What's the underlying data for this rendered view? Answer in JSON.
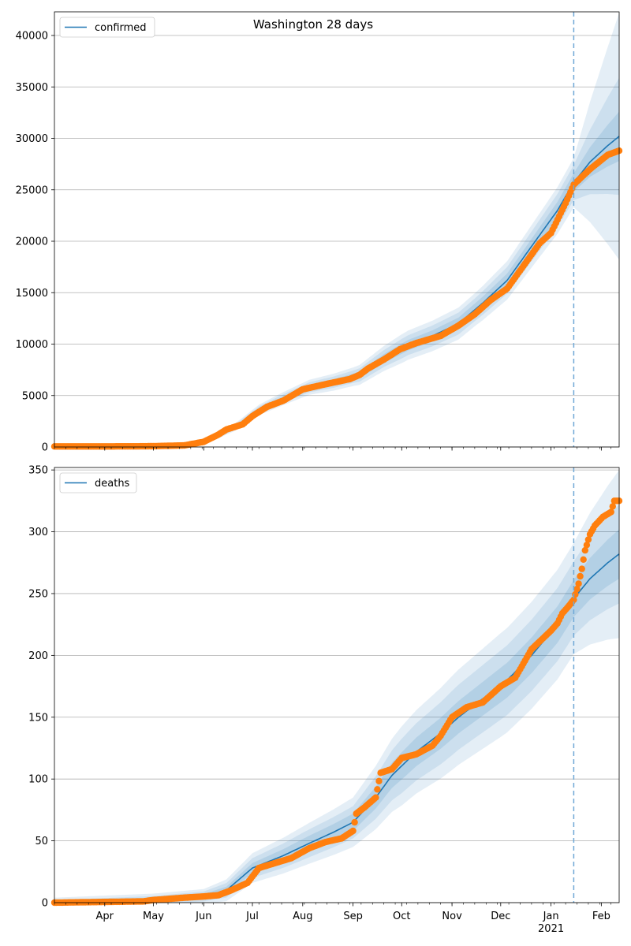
{
  "chart_data": [
    {
      "type": "line",
      "title": "Washington 28 days",
      "ylim": [
        0,
        42300
      ],
      "yticks": [
        0,
        5000,
        10000,
        15000,
        20000,
        25000,
        30000,
        35000,
        40000
      ],
      "grid": "y",
      "legend": "top-left",
      "forecast_start": "2021-01-15",
      "series": [
        {
          "name": "confirmed",
          "color": "#1f77b4",
          "model_points": [
            [
              "2020-03-01",
              0
            ],
            [
              "2020-05-01",
              50
            ],
            [
              "2020-05-25",
              200
            ],
            [
              "2020-06-05",
              700
            ],
            [
              "2020-06-20",
              1900
            ],
            [
              "2020-07-05",
              3600
            ],
            [
              "2020-07-20",
              4700
            ],
            [
              "2020-08-05",
              5800
            ],
            [
              "2020-08-20",
              6300
            ],
            [
              "2020-09-05",
              7000
            ],
            [
              "2020-09-20",
              8600
            ],
            [
              "2020-10-05",
              9900
            ],
            [
              "2020-10-20",
              10800
            ],
            [
              "2020-11-05",
              12000
            ],
            [
              "2020-11-20",
              14000
            ],
            [
              "2020-12-05",
              16200
            ],
            [
              "2020-12-20",
              19500
            ],
            [
              "2021-01-05",
              23000
            ],
            [
              "2021-01-15",
              25700
            ],
            [
              "2021-01-25",
              27700
            ],
            [
              "2021-02-05",
              29300
            ],
            [
              "2021-02-12",
              30200
            ]
          ],
          "band_widths": [
            [
              [
                "2020-03-01",
                0
              ],
              [
                "2020-05-15",
                60
              ],
              [
                "2020-06-15",
                300
              ],
              [
                "2020-07-15",
                600
              ],
              [
                "2020-09-01",
                900
              ],
              [
                "2020-10-01",
                1400
              ],
              [
                "2020-11-15",
                1600
              ],
              [
                "2020-12-15",
                2000
              ],
              [
                "2021-01-15",
                2400
              ],
              [
                "2021-02-12",
                12000
              ]
            ],
            [
              [
                "2020-03-01",
                0
              ],
              [
                "2020-05-15",
                40
              ],
              [
                "2020-06-15",
                200
              ],
              [
                "2020-07-15",
                400
              ],
              [
                "2020-09-01",
                600
              ],
              [
                "2020-10-01",
                950
              ],
              [
                "2020-11-15",
                1100
              ],
              [
                "2020-12-15",
                1400
              ],
              [
                "2021-01-15",
                1700
              ],
              [
                "2021-02-12",
                5700
              ]
            ],
            [
              [
                "2020-03-01",
                0
              ],
              [
                "2020-05-15",
                20
              ],
              [
                "2020-06-15",
                100
              ],
              [
                "2020-07-15",
                200
              ],
              [
                "2020-09-01",
                300
              ],
              [
                "2020-10-01",
                500
              ],
              [
                "2020-11-15",
                600
              ],
              [
                "2020-12-15",
                700
              ],
              [
                "2021-01-15",
                900
              ],
              [
                "2021-02-12",
                2400
              ]
            ]
          ],
          "observed_points": [
            [
              "2020-03-01",
              50
            ],
            [
              "2020-04-20",
              60
            ],
            [
              "2020-05-01",
              80
            ],
            [
              "2020-05-20",
              150
            ],
            [
              "2020-06-01",
              500
            ],
            [
              "2020-06-10",
              1200
            ],
            [
              "2020-06-15",
              1700
            ],
            [
              "2020-06-25",
              2200
            ],
            [
              "2020-07-01",
              3000
            ],
            [
              "2020-07-10",
              3900
            ],
            [
              "2020-07-20",
              4500
            ],
            [
              "2020-08-01",
              5600
            ],
            [
              "2020-08-15",
              6100
            ],
            [
              "2020-08-30",
              6600
            ],
            [
              "2020-09-05",
              7000
            ],
            [
              "2020-09-10",
              7600
            ],
            [
              "2020-09-20",
              8500
            ],
            [
              "2020-09-30",
              9500
            ],
            [
              "2020-10-10",
              10100
            ],
            [
              "2020-10-25",
              10800
            ],
            [
              "2020-11-05",
              11800
            ],
            [
              "2020-11-15",
              12900
            ],
            [
              "2020-11-25",
              14300
            ],
            [
              "2020-12-05",
              15400
            ],
            [
              "2020-12-15",
              17600
            ],
            [
              "2020-12-25",
              19800
            ],
            [
              "2021-01-01",
              20800
            ],
            [
              "2021-01-10",
              23700
            ],
            [
              "2021-01-15",
              25500
            ],
            [
              "2021-01-25",
              27000
            ],
            [
              "2021-02-05",
              28400
            ],
            [
              "2021-02-12",
              28800
            ]
          ]
        }
      ]
    },
    {
      "type": "line",
      "ylim": [
        0,
        352
      ],
      "yticks": [
        0,
        50,
        100,
        150,
        200,
        250,
        300,
        350
      ],
      "grid": "y",
      "legend": "top-left",
      "forecast_start": "2021-01-15",
      "xlim": [
        "2020-03-01",
        "2021-02-12"
      ],
      "xtick_labels": [
        {
          "date": "2020-04-01",
          "label": "Apr"
        },
        {
          "date": "2020-05-01",
          "label": "May"
        },
        {
          "date": "2020-06-01",
          "label": "Jun"
        },
        {
          "date": "2020-07-01",
          "label": "Jul"
        },
        {
          "date": "2020-08-01",
          "label": "Aug"
        },
        {
          "date": "2020-09-01",
          "label": "Sep"
        },
        {
          "date": "2020-10-01",
          "label": "Oct"
        },
        {
          "date": "2020-11-01",
          "label": "Nov"
        },
        {
          "date": "2020-12-01",
          "label": "Dec"
        },
        {
          "date": "2021-01-01",
          "label": "Jan\n2021"
        },
        {
          "date": "2021-02-01",
          "label": "Feb"
        }
      ],
      "series": [
        {
          "name": "deaths",
          "color": "#1f77b4",
          "model_points": [
            [
              "2020-03-01",
              0
            ],
            [
              "2020-05-01",
              2
            ],
            [
              "2020-06-01",
              5
            ],
            [
              "2020-06-15",
              10
            ],
            [
              "2020-07-01",
              28
            ],
            [
              "2020-07-20",
              38
            ],
            [
              "2020-08-05",
              48
            ],
            [
              "2020-08-20",
              57
            ],
            [
              "2020-09-01",
              65
            ],
            [
              "2020-09-15",
              85
            ],
            [
              "2020-09-25",
              103
            ],
            [
              "2020-10-10",
              122
            ],
            [
              "2020-10-25",
              137
            ],
            [
              "2020-11-05",
              150
            ],
            [
              "2020-11-20",
              165
            ],
            [
              "2020-12-05",
              180
            ],
            [
              "2020-12-20",
              200
            ],
            [
              "2021-01-05",
              225
            ],
            [
              "2021-01-15",
              246
            ],
            [
              "2021-01-25",
              262
            ],
            [
              "2021-02-05",
              275
            ],
            [
              "2021-02-12",
              282
            ]
          ],
          "band_widths": [
            [
              [
                "2020-03-01",
                4
              ],
              [
                "2020-06-01",
                6
              ],
              [
                "2020-07-01",
                12
              ],
              [
                "2020-08-01",
                16
              ],
              [
                "2020-09-01",
                20
              ],
              [
                "2020-10-01",
                32
              ],
              [
                "2020-11-01",
                38
              ],
              [
                "2020-12-01",
                42
              ],
              [
                "2021-01-15",
                45
              ],
              [
                "2021-02-12",
                68
              ]
            ],
            [
              [
                "2020-03-01",
                2
              ],
              [
                "2020-06-01",
                4
              ],
              [
                "2020-07-01",
                8
              ],
              [
                "2020-08-01",
                11
              ],
              [
                "2020-09-01",
                13
              ],
              [
                "2020-10-01",
                22
              ],
              [
                "2020-11-01",
                26
              ],
              [
                "2020-12-01",
                28
              ],
              [
                "2021-01-15",
                30
              ],
              [
                "2021-02-12",
                40
              ]
            ],
            [
              [
                "2020-03-01",
                1
              ],
              [
                "2020-06-01",
                2
              ],
              [
                "2020-07-01",
                4
              ],
              [
                "2020-08-01",
                6
              ],
              [
                "2020-09-01",
                7
              ],
              [
                "2020-10-01",
                11
              ],
              [
                "2020-11-01",
                13
              ],
              [
                "2020-12-01",
                14
              ],
              [
                "2021-01-15",
                15
              ],
              [
                "2021-02-12",
                20
              ]
            ]
          ],
          "observed_points": [
            [
              "2020-03-01",
              0
            ],
            [
              "2020-04-25",
              1
            ],
            [
              "2020-04-30",
              2
            ],
            [
              "2020-05-20",
              4
            ],
            [
              "2020-06-01",
              5
            ],
            [
              "2020-06-10",
              6
            ],
            [
              "2020-06-18",
              10
            ],
            [
              "2020-06-28",
              16
            ],
            [
              "2020-07-05",
              28
            ],
            [
              "2020-07-15",
              32
            ],
            [
              "2020-07-25",
              36
            ],
            [
              "2020-08-05",
              44
            ],
            [
              "2020-08-15",
              49
            ],
            [
              "2020-08-25",
              52
            ],
            [
              "2020-09-01",
              58
            ],
            [
              "2020-09-03",
              72
            ],
            [
              "2020-09-08",
              77
            ],
            [
              "2020-09-15",
              85
            ],
            [
              "2020-09-18",
              105
            ],
            [
              "2020-09-25",
              108
            ],
            [
              "2020-10-01",
              117
            ],
            [
              "2020-10-10",
              120
            ],
            [
              "2020-10-20",
              127
            ],
            [
              "2020-10-25",
              135
            ],
            [
              "2020-11-01",
              150
            ],
            [
              "2020-11-10",
              158
            ],
            [
              "2020-11-20",
              162
            ],
            [
              "2020-12-01",
              175
            ],
            [
              "2020-12-10",
              182
            ],
            [
              "2020-12-20",
              205
            ],
            [
              "2021-01-01",
              220
            ],
            [
              "2021-01-05",
              226
            ],
            [
              "2021-01-08",
              234
            ],
            [
              "2021-01-12",
              240
            ],
            [
              "2021-01-15",
              245
            ],
            [
              "2021-01-18",
              258
            ],
            [
              "2021-01-20",
              270
            ],
            [
              "2021-01-22",
              285
            ],
            [
              "2021-01-25",
              298
            ],
            [
              "2021-01-28",
              305
            ],
            [
              "2021-02-02",
              312
            ],
            [
              "2021-02-07",
              316
            ],
            [
              "2021-02-09",
              325
            ],
            [
              "2021-02-12",
              325
            ]
          ]
        }
      ]
    }
  ]
}
